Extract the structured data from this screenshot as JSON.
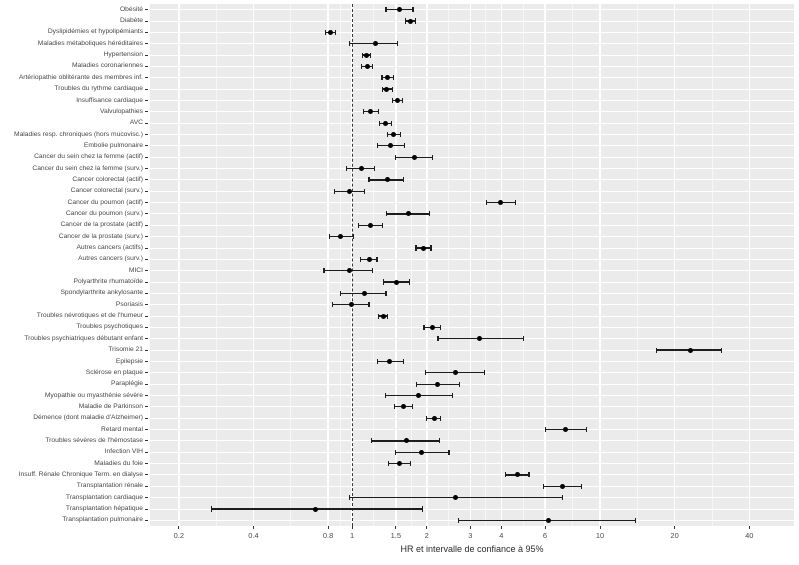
{
  "chart_data": {
    "type": "scatter",
    "subtype": "forest-plot",
    "title": "",
    "xlabel": "HR et intervalle de confiance à 95%",
    "ylabel": "",
    "x_scale": "log",
    "x_ticks": [
      0.2,
      0.4,
      0.8,
      1,
      1.5,
      2,
      3,
      4,
      6,
      10,
      20,
      40
    ],
    "x_tick_labels": [
      "0.2",
      "0.4",
      "0.8",
      "1",
      "1.5",
      "2",
      "3",
      "4",
      "6",
      "10",
      "20",
      "40"
    ],
    "x_range": [
      0.153,
      60.6
    ],
    "reference_line": 1,
    "grid": true,
    "legend": false,
    "point_color": "#000000",
    "panel_color": "#ebebeb",
    "rows": [
      {
        "label": "Obésité",
        "hr": 1.55,
        "lo": 1.37,
        "hi": 1.76
      },
      {
        "label": "Diabète",
        "hr": 1.72,
        "lo": 1.64,
        "hi": 1.8
      },
      {
        "label": "Dyslipidémies et hypolipémiants",
        "hr": 0.82,
        "lo": 0.78,
        "hi": 0.86
      },
      {
        "label": "Maladies métaboliques héréditaires",
        "hr": 1.24,
        "lo": 0.98,
        "hi": 1.53
      },
      {
        "label": "Hypertension",
        "hr": 1.14,
        "lo": 1.1,
        "hi": 1.19
      },
      {
        "label": "Maladies coronariennes",
        "hr": 1.15,
        "lo": 1.09,
        "hi": 1.21
      },
      {
        "label": "Artériopathie oblitérante des membres inf.",
        "hr": 1.39,
        "lo": 1.32,
        "hi": 1.47
      },
      {
        "label": "Troubles du rythme cardiaque",
        "hr": 1.38,
        "lo": 1.33,
        "hi": 1.46
      },
      {
        "label": "Insuffisance cardiaque",
        "hr": 1.52,
        "lo": 1.45,
        "hi": 1.6
      },
      {
        "label": "Valvulopathies",
        "hr": 1.19,
        "lo": 1.11,
        "hi": 1.28
      },
      {
        "label": "AVC",
        "hr": 1.36,
        "lo": 1.29,
        "hi": 1.44
      },
      {
        "label": "Maladies resp. chroniques (hors mucovisc.)",
        "hr": 1.47,
        "lo": 1.39,
        "hi": 1.57
      },
      {
        "label": "Embolie pulmonaire",
        "hr": 1.43,
        "lo": 1.27,
        "hi": 1.62
      },
      {
        "label": "Cancer du sein chez la femme (actif)",
        "hr": 1.78,
        "lo": 1.5,
        "hi": 2.11
      },
      {
        "label": "Cancer du sein chez la femme (surv.)",
        "hr": 1.09,
        "lo": 0.95,
        "hi": 1.23
      },
      {
        "label": "Cancer colorectal (actif)",
        "hr": 1.39,
        "lo": 1.17,
        "hi": 1.61
      },
      {
        "label": "Cancer colorectal (surv.)",
        "hr": 0.98,
        "lo": 0.85,
        "hi": 1.12
      },
      {
        "label": "Cancer du poumon (actif)",
        "hr": 3.98,
        "lo": 3.47,
        "hi": 4.57
      },
      {
        "label": "Cancer du poumon (surv.)",
        "hr": 1.68,
        "lo": 1.38,
        "hi": 2.05
      },
      {
        "label": "Cancer de la prostate (actif)",
        "hr": 1.19,
        "lo": 1.06,
        "hi": 1.33
      },
      {
        "label": "Cancer de la prostate (surv.)",
        "hr": 0.9,
        "lo": 0.81,
        "hi": 1.01
      },
      {
        "label": "Autres cancers (actifs)",
        "hr": 1.94,
        "lo": 1.81,
        "hi": 2.08
      },
      {
        "label": "Autres cancers (surv.)",
        "hr": 1.17,
        "lo": 1.08,
        "hi": 1.26
      },
      {
        "label": "MICI",
        "hr": 0.98,
        "lo": 0.77,
        "hi": 1.21
      },
      {
        "label": "Polyarthrite rhumatoïde",
        "hr": 1.51,
        "lo": 1.34,
        "hi": 1.71
      },
      {
        "label": "Spondylarthrite ankylosante",
        "hr": 1.12,
        "lo": 0.9,
        "hi": 1.37
      },
      {
        "label": "Psoriasis",
        "hr": 0.99,
        "lo": 0.83,
        "hi": 1.17
      },
      {
        "label": "Troubles névrotiques et de l'humeur",
        "hr": 1.34,
        "lo": 1.28,
        "hi": 1.39
      },
      {
        "label": "Troubles psychotiques",
        "hr": 2.11,
        "lo": 1.95,
        "hi": 2.27
      },
      {
        "label": "Troubles psychiatriques débutant enfant",
        "hr": 3.26,
        "lo": 2.22,
        "hi": 4.91
      },
      {
        "label": "Trisomie 21",
        "hr": 23.1,
        "lo": 16.9,
        "hi": 30.8
      },
      {
        "label": "Epilepsie",
        "hr": 1.42,
        "lo": 1.27,
        "hi": 1.61
      },
      {
        "label": "Sclérose en plaque",
        "hr": 2.6,
        "lo": 1.97,
        "hi": 3.42
      },
      {
        "label": "Paraplégie",
        "hr": 2.21,
        "lo": 1.82,
        "hi": 2.7
      },
      {
        "label": "Myopathie ou myasthénie sévère",
        "hr": 1.86,
        "lo": 1.36,
        "hi": 2.53
      },
      {
        "label": "Maladie de Parkinson",
        "hr": 1.61,
        "lo": 1.48,
        "hi": 1.75
      },
      {
        "label": "Démence (dont maladie d'Alzheimer)",
        "hr": 2.14,
        "lo": 2.0,
        "hi": 2.28
      },
      {
        "label": "Retard mental",
        "hr": 7.25,
        "lo": 6.02,
        "hi": 8.85
      },
      {
        "label": "Troubles sévères de l'hémostase",
        "hr": 1.65,
        "lo": 1.2,
        "hi": 2.26
      },
      {
        "label": "Infection VIH",
        "hr": 1.91,
        "lo": 1.49,
        "hi": 2.46
      },
      {
        "label": "Maladies du foie",
        "hr": 1.55,
        "lo": 1.4,
        "hi": 1.72
      },
      {
        "label": "Insuff. Rénale Chronique Term. en dialyse",
        "hr": 4.64,
        "lo": 4.14,
        "hi": 5.17
      },
      {
        "label": "Transplantation rénale",
        "hr": 7.07,
        "lo": 5.91,
        "hi": 8.4
      },
      {
        "label": "Transplantation cardiaque",
        "hr": 2.62,
        "lo": 0.98,
        "hi": 7.05
      },
      {
        "label": "Transplantation hépatique",
        "hr": 0.71,
        "lo": 0.27,
        "hi": 1.93
      },
      {
        "label": "Transplantation pulmonaire",
        "hr": 6.18,
        "lo": 2.68,
        "hi": 13.9
      }
    ]
  }
}
